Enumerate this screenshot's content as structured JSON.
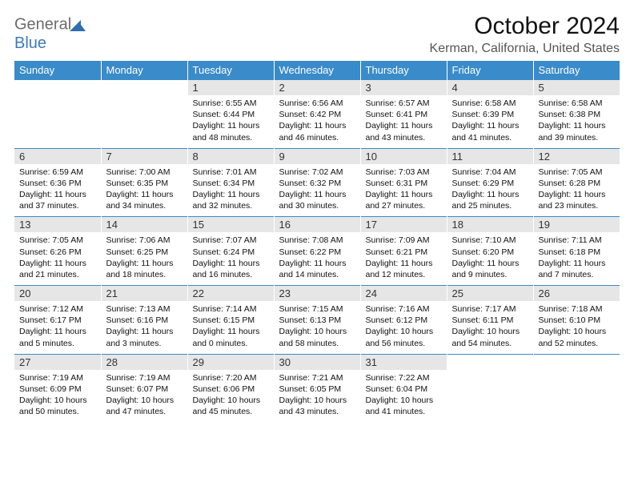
{
  "logo": {
    "word1": "General",
    "word2": "Blue"
  },
  "colors": {
    "header_bg": "#3a8bc9",
    "header_text": "#ffffff",
    "daynum_bg": "#e6e6e6",
    "accent_border": "#3a8bc9",
    "logo_gray": "#6c6c6c",
    "logo_blue": "#3b7bbf"
  },
  "title": "October 2024",
  "location": "Kerman, California, United States",
  "weekdays": [
    "Sunday",
    "Monday",
    "Tuesday",
    "Wednesday",
    "Thursday",
    "Friday",
    "Saturday"
  ],
  "weeks": [
    [
      null,
      null,
      {
        "n": "1",
        "sr": "Sunrise: 6:55 AM",
        "ss": "Sunset: 6:44 PM",
        "d1": "Daylight: 11 hours",
        "d2": "and 48 minutes."
      },
      {
        "n": "2",
        "sr": "Sunrise: 6:56 AM",
        "ss": "Sunset: 6:42 PM",
        "d1": "Daylight: 11 hours",
        "d2": "and 46 minutes."
      },
      {
        "n": "3",
        "sr": "Sunrise: 6:57 AM",
        "ss": "Sunset: 6:41 PM",
        "d1": "Daylight: 11 hours",
        "d2": "and 43 minutes."
      },
      {
        "n": "4",
        "sr": "Sunrise: 6:58 AM",
        "ss": "Sunset: 6:39 PM",
        "d1": "Daylight: 11 hours",
        "d2": "and 41 minutes."
      },
      {
        "n": "5",
        "sr": "Sunrise: 6:58 AM",
        "ss": "Sunset: 6:38 PM",
        "d1": "Daylight: 11 hours",
        "d2": "and 39 minutes."
      }
    ],
    [
      {
        "n": "6",
        "sr": "Sunrise: 6:59 AM",
        "ss": "Sunset: 6:36 PM",
        "d1": "Daylight: 11 hours",
        "d2": "and 37 minutes."
      },
      {
        "n": "7",
        "sr": "Sunrise: 7:00 AM",
        "ss": "Sunset: 6:35 PM",
        "d1": "Daylight: 11 hours",
        "d2": "and 34 minutes."
      },
      {
        "n": "8",
        "sr": "Sunrise: 7:01 AM",
        "ss": "Sunset: 6:34 PM",
        "d1": "Daylight: 11 hours",
        "d2": "and 32 minutes."
      },
      {
        "n": "9",
        "sr": "Sunrise: 7:02 AM",
        "ss": "Sunset: 6:32 PM",
        "d1": "Daylight: 11 hours",
        "d2": "and 30 minutes."
      },
      {
        "n": "10",
        "sr": "Sunrise: 7:03 AM",
        "ss": "Sunset: 6:31 PM",
        "d1": "Daylight: 11 hours",
        "d2": "and 27 minutes."
      },
      {
        "n": "11",
        "sr": "Sunrise: 7:04 AM",
        "ss": "Sunset: 6:29 PM",
        "d1": "Daylight: 11 hours",
        "d2": "and 25 minutes."
      },
      {
        "n": "12",
        "sr": "Sunrise: 7:05 AM",
        "ss": "Sunset: 6:28 PM",
        "d1": "Daylight: 11 hours",
        "d2": "and 23 minutes."
      }
    ],
    [
      {
        "n": "13",
        "sr": "Sunrise: 7:05 AM",
        "ss": "Sunset: 6:26 PM",
        "d1": "Daylight: 11 hours",
        "d2": "and 21 minutes."
      },
      {
        "n": "14",
        "sr": "Sunrise: 7:06 AM",
        "ss": "Sunset: 6:25 PM",
        "d1": "Daylight: 11 hours",
        "d2": "and 18 minutes."
      },
      {
        "n": "15",
        "sr": "Sunrise: 7:07 AM",
        "ss": "Sunset: 6:24 PM",
        "d1": "Daylight: 11 hours",
        "d2": "and 16 minutes."
      },
      {
        "n": "16",
        "sr": "Sunrise: 7:08 AM",
        "ss": "Sunset: 6:22 PM",
        "d1": "Daylight: 11 hours",
        "d2": "and 14 minutes."
      },
      {
        "n": "17",
        "sr": "Sunrise: 7:09 AM",
        "ss": "Sunset: 6:21 PM",
        "d1": "Daylight: 11 hours",
        "d2": "and 12 minutes."
      },
      {
        "n": "18",
        "sr": "Sunrise: 7:10 AM",
        "ss": "Sunset: 6:20 PM",
        "d1": "Daylight: 11 hours",
        "d2": "and 9 minutes."
      },
      {
        "n": "19",
        "sr": "Sunrise: 7:11 AM",
        "ss": "Sunset: 6:18 PM",
        "d1": "Daylight: 11 hours",
        "d2": "and 7 minutes."
      }
    ],
    [
      {
        "n": "20",
        "sr": "Sunrise: 7:12 AM",
        "ss": "Sunset: 6:17 PM",
        "d1": "Daylight: 11 hours",
        "d2": "and 5 minutes."
      },
      {
        "n": "21",
        "sr": "Sunrise: 7:13 AM",
        "ss": "Sunset: 6:16 PM",
        "d1": "Daylight: 11 hours",
        "d2": "and 3 minutes."
      },
      {
        "n": "22",
        "sr": "Sunrise: 7:14 AM",
        "ss": "Sunset: 6:15 PM",
        "d1": "Daylight: 11 hours",
        "d2": "and 0 minutes."
      },
      {
        "n": "23",
        "sr": "Sunrise: 7:15 AM",
        "ss": "Sunset: 6:13 PM",
        "d1": "Daylight: 10 hours",
        "d2": "and 58 minutes."
      },
      {
        "n": "24",
        "sr": "Sunrise: 7:16 AM",
        "ss": "Sunset: 6:12 PM",
        "d1": "Daylight: 10 hours",
        "d2": "and 56 minutes."
      },
      {
        "n": "25",
        "sr": "Sunrise: 7:17 AM",
        "ss": "Sunset: 6:11 PM",
        "d1": "Daylight: 10 hours",
        "d2": "and 54 minutes."
      },
      {
        "n": "26",
        "sr": "Sunrise: 7:18 AM",
        "ss": "Sunset: 6:10 PM",
        "d1": "Daylight: 10 hours",
        "d2": "and 52 minutes."
      }
    ],
    [
      {
        "n": "27",
        "sr": "Sunrise: 7:19 AM",
        "ss": "Sunset: 6:09 PM",
        "d1": "Daylight: 10 hours",
        "d2": "and 50 minutes."
      },
      {
        "n": "28",
        "sr": "Sunrise: 7:19 AM",
        "ss": "Sunset: 6:07 PM",
        "d1": "Daylight: 10 hours",
        "d2": "and 47 minutes."
      },
      {
        "n": "29",
        "sr": "Sunrise: 7:20 AM",
        "ss": "Sunset: 6:06 PM",
        "d1": "Daylight: 10 hours",
        "d2": "and 45 minutes."
      },
      {
        "n": "30",
        "sr": "Sunrise: 7:21 AM",
        "ss": "Sunset: 6:05 PM",
        "d1": "Daylight: 10 hours",
        "d2": "and 43 minutes."
      },
      {
        "n": "31",
        "sr": "Sunrise: 7:22 AM",
        "ss": "Sunset: 6:04 PM",
        "d1": "Daylight: 10 hours",
        "d2": "and 41 minutes."
      },
      null,
      null
    ]
  ]
}
